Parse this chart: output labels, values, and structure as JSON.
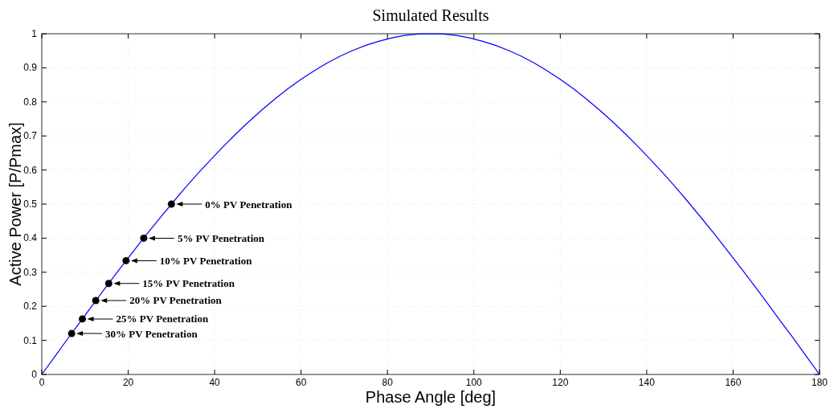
{
  "chart_data": {
    "type": "line",
    "title": "Simulated Results",
    "xlabel": "Phase Angle [deg]",
    "ylabel": "Active Power [P/Pmax]",
    "xlim": [
      0,
      180
    ],
    "xticks": [
      0,
      20,
      40,
      60,
      80,
      100,
      120,
      140,
      160,
      180
    ],
    "ylim": [
      0,
      1
    ],
    "yticks": [
      0,
      0.1,
      0.2,
      0.3,
      0.4,
      0.5,
      0.6,
      0.7,
      0.8,
      0.9,
      1
    ],
    "grid": true,
    "line_style": "solid",
    "series": [
      {
        "color": "#0000ff",
        "marker": "none",
        "x": [
          0,
          3,
          6,
          9,
          12,
          15,
          18,
          21,
          24,
          27,
          30,
          33,
          36,
          39,
          42,
          45,
          48,
          51,
          54,
          57,
          60,
          63,
          66,
          69,
          72,
          75,
          78,
          81,
          84,
          87,
          90,
          93,
          96,
          99,
          102,
          105,
          108,
          111,
          114,
          117,
          120,
          123,
          126,
          129,
          132,
          135,
          138,
          141,
          144,
          147,
          150,
          153,
          156,
          159,
          162,
          165,
          168,
          171,
          174,
          177,
          180
        ],
        "values": [
          0,
          0.052,
          0.105,
          0.156,
          0.208,
          0.259,
          0.309,
          0.358,
          0.407,
          0.454,
          0.5,
          0.545,
          0.588,
          0.629,
          0.669,
          0.707,
          0.743,
          0.777,
          0.809,
          0.839,
          0.866,
          0.891,
          0.914,
          0.934,
          0.951,
          0.966,
          0.978,
          0.988,
          0.995,
          0.999,
          1,
          0.999,
          0.995,
          0.988,
          0.978,
          0.966,
          0.951,
          0.934,
          0.914,
          0.891,
          0.866,
          0.839,
          0.809,
          0.777,
          0.743,
          0.707,
          0.669,
          0.629,
          0.588,
          0.545,
          0.5,
          0.454,
          0.407,
          0.358,
          0.309,
          0.259,
          0.208,
          0.156,
          0.105,
          0.052,
          0
        ]
      },
      {
        "type": "scatter",
        "color": "#000000",
        "marker": "circle",
        "x": [
          30,
          23.6,
          19.5,
          15.5,
          12.5,
          9.4,
          6.9
        ],
        "values": [
          0.5,
          0.4,
          0.334,
          0.267,
          0.217,
          0.163,
          0.12
        ]
      }
    ],
    "annotations": [
      "0% PV Penetration",
      "5% PV Penetration",
      "10% PV Penetration",
      "15% PV Penetration",
      "20% PV Penetration",
      "25% PV Penetration",
      "30% PV Penetration"
    ]
  }
}
